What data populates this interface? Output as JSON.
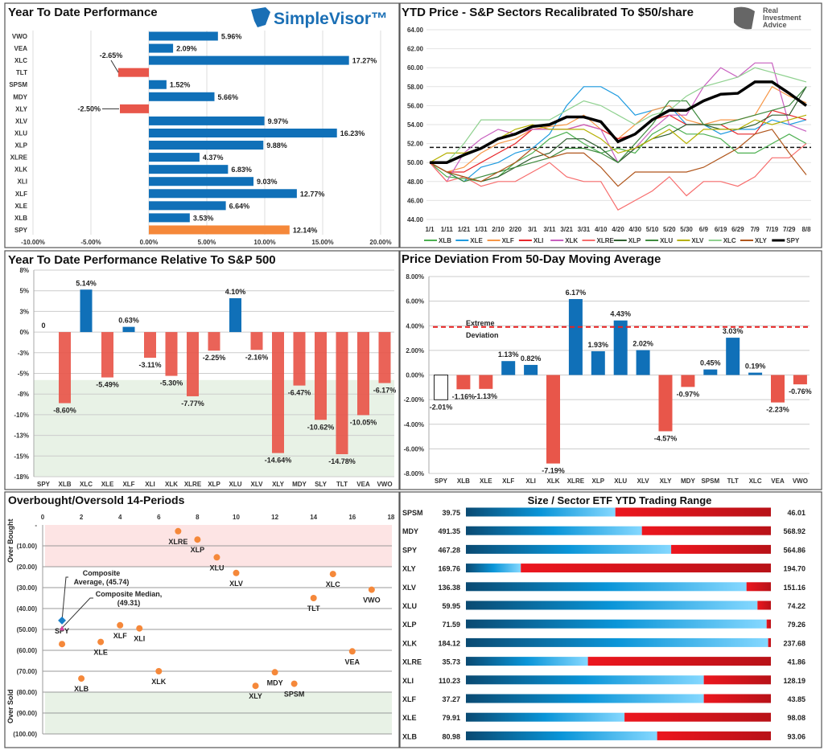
{
  "chart_data": [
    {
      "type": "bar",
      "orientation": "horizontal",
      "title": "Year To Date Performance",
      "logo": "SimpleVisor™",
      "categories": [
        "VWO",
        "VEA",
        "XLC",
        "TLT",
        "SPSM",
        "MDY",
        "XLY",
        "XLV",
        "XLU",
        "XLP",
        "XLRE",
        "XLK",
        "XLI",
        "XLF",
        "XLE",
        "XLB",
        "SPY"
      ],
      "values": [
        5.96,
        2.09,
        17.27,
        -2.65,
        1.52,
        5.66,
        -2.5,
        9.97,
        16.23,
        9.88,
        4.37,
        6.83,
        9.03,
        12.77,
        6.64,
        3.53,
        12.14
      ],
      "labels": [
        "5.96%",
        "2.09%",
        "17.27%",
        "-2.65%",
        "1.52%",
        "5.66%",
        "-2.50%",
        "9.97%",
        "16.23%",
        "9.88%",
        "4.37%",
        "6.83%",
        "9.03%",
        "12.77%",
        "6.64%",
        "3.53%",
        "12.14%"
      ],
      "xlim": [
        -10,
        20
      ],
      "x_ticks": [
        -10,
        -5,
        0,
        5,
        10,
        15,
        20
      ],
      "x_tick_labels": [
        "-10.00%",
        "-5.00%",
        "0.00%",
        "5.00%",
        "10.00%",
        "15.00%",
        "20.00%"
      ],
      "colors": {
        "positive": "#1070b8",
        "negative": "#e8564a",
        "benchmark": "#f5883a"
      },
      "grid": true
    },
    {
      "type": "line",
      "title": "YTD Price - S&P Sectors Recalibrated To $50/share",
      "logo": "Real Investment Advice",
      "x": [
        "1/1",
        "1/11",
        "1/21",
        "1/31",
        "2/10",
        "2/20",
        "3/1",
        "3/11",
        "3/21",
        "3/31",
        "4/10",
        "4/20",
        "4/30",
        "5/10",
        "5/20",
        "5/30",
        "6/9",
        "6/19",
        "6/29",
        "7/9",
        "7/19",
        "7/29",
        "8/8"
      ],
      "ylim": [
        44,
        64
      ],
      "y_ticks": [
        44,
        46,
        48,
        50,
        52,
        54,
        56,
        58,
        60,
        62,
        64
      ],
      "y_tick_labels": [
        "44.00",
        "46.00",
        "48.00",
        "50.00",
        "52.00",
        "54.00",
        "56.00",
        "58.00",
        "60.00",
        "62.00",
        "64.00"
      ],
      "reference_line": 51.6,
      "legend": "bottom",
      "grid": true,
      "series": [
        {
          "name": "XLB",
          "color": "#4cb050",
          "values": [
            50,
            48.5,
            48.3,
            48,
            48.5,
            50,
            51,
            52.5,
            53.2,
            52,
            51,
            51.5,
            51,
            53,
            54,
            53,
            53,
            52.5,
            51,
            51,
            52,
            53,
            52
          ]
        },
        {
          "name": "XLE",
          "color": "#1e9be0",
          "values": [
            50,
            49,
            48,
            49.5,
            50,
            51,
            51.5,
            53,
            56,
            58,
            58,
            57,
            55,
            55.5,
            56,
            54,
            54,
            53,
            53.5,
            53.5,
            54.5,
            54,
            54.5
          ]
        },
        {
          "name": "XLF",
          "color": "#f79646",
          "values": [
            50,
            49,
            49.5,
            51,
            52,
            52.5,
            53.5,
            53.8,
            54,
            55,
            53.5,
            52.5,
            54,
            55.5,
            56,
            54.5,
            54,
            54.5,
            54.5,
            55,
            58,
            57,
            56.3
          ]
        },
        {
          "name": "XLI",
          "color": "#e8262a",
          "values": [
            50,
            49,
            49,
            50,
            51,
            52,
            53.5,
            53.5,
            53.5,
            54,
            53.5,
            52.5,
            53,
            54.5,
            55,
            54,
            54,
            54,
            53,
            53,
            55.5,
            55,
            54.5
          ]
        },
        {
          "name": "XLK",
          "color": "#c85fbf",
          "values": [
            50,
            48,
            51,
            52.5,
            53.5,
            53,
            53.5,
            53.5,
            53.5,
            54,
            53.5,
            50,
            51.5,
            53.5,
            55,
            55,
            58,
            60,
            59,
            60.5,
            60.5,
            54,
            53.3
          ]
        },
        {
          "name": "XLRE",
          "color": "#f76d6d",
          "values": [
            50,
            48,
            48.5,
            47.5,
            48,
            48,
            49,
            50,
            48.5,
            48,
            48,
            45,
            46,
            47,
            48.5,
            46.5,
            48,
            48,
            47.5,
            48.5,
            50.5,
            50.5,
            52
          ]
        },
        {
          "name": "XLP",
          "color": "#2e5e2e",
          "values": [
            50,
            49,
            48.5,
            48,
            48.5,
            49.5,
            50.5,
            51,
            52.5,
            52.5,
            51.5,
            50,
            51.5,
            52.5,
            53,
            54,
            54,
            53.5,
            53.5,
            54,
            55,
            55,
            58
          ]
        },
        {
          "name": "XLU",
          "color": "#3d8a3d",
          "values": [
            50,
            49,
            48,
            48.5,
            49,
            49.5,
            50,
            50.5,
            51.5,
            51.5,
            51,
            50,
            52,
            54,
            56.5,
            56.5,
            54,
            54,
            54.5,
            55,
            55.5,
            56,
            58
          ]
        },
        {
          "name": "XLV",
          "color": "#b5b000",
          "values": [
            50,
            51,
            51,
            51.5,
            52.5,
            53.5,
            54,
            53.5,
            53.5,
            53.5,
            52.5,
            51,
            51.5,
            52.5,
            53.5,
            52,
            53.5,
            53.5,
            53.5,
            54.5,
            54,
            54.5,
            55
          ]
        },
        {
          "name": "XLC",
          "color": "#8fd18f",
          "values": [
            50,
            50,
            52,
            54.5,
            54.5,
            54.5,
            54.5,
            54.5,
            55.5,
            56.5,
            56,
            55,
            54,
            55,
            55.5,
            57,
            58,
            58.5,
            59,
            60,
            59.5,
            59,
            58.5
          ]
        },
        {
          "name": "XLY",
          "color": "#b0561c",
          "values": [
            50,
            49,
            48.5,
            48,
            49,
            50,
            51.5,
            50.5,
            51,
            51,
            49.5,
            47.5,
            49,
            49,
            49,
            49,
            49.5,
            50.5,
            51.5,
            53,
            53.5,
            51,
            48.7
          ]
        },
        {
          "name": "SPY",
          "color": "#000000",
          "values": [
            50,
            50,
            50.8,
            51.5,
            52.5,
            53,
            53.8,
            54,
            54.8,
            54.8,
            54.3,
            52.2,
            53,
            54.5,
            55.5,
            55.5,
            56.5,
            57.2,
            57.3,
            58.5,
            58.5,
            57.3,
            56
          ]
        }
      ]
    },
    {
      "type": "bar",
      "title": "Year To Date Performance Relative To S&P 500",
      "categories": [
        "SPY",
        "XLB",
        "XLC",
        "XLE",
        "XLF",
        "XLI",
        "XLK",
        "XLRE",
        "XLP",
        "XLU",
        "XLV",
        "XLY",
        "MDY",
        "SLY",
        "TLT",
        "VEA",
        "VWO"
      ],
      "values": [
        0,
        -8.6,
        5.14,
        -5.49,
        0.63,
        -3.11,
        -5.3,
        -7.77,
        -2.25,
        4.1,
        -2.16,
        -14.64,
        -6.47,
        -10.62,
        -14.78,
        -10.05,
        -6.17
      ],
      "labels": [
        "0",
        "-8.60%",
        "5.14%",
        "-5.49%",
        "0.63%",
        "-3.11%",
        "-5.30%",
        "-7.77%",
        "-2.25%",
        "4.10%",
        "-2.16%",
        "-14.64%",
        "-6.47%",
        "-10.62%",
        "-14.78%",
        "-10.05%",
        "-6.17%"
      ],
      "ylim": [
        -17.5,
        7.5
      ],
      "y_ticks": [
        7.5,
        5,
        2.5,
        0,
        -2.5,
        -5,
        -7.5,
        -10,
        -12.5,
        -15,
        -17.5
      ],
      "y_tick_labels": [
        "8%",
        "5%",
        "3%",
        "0%",
        "-3%",
        "-5%",
        "-8%",
        "-10%",
        "-13%",
        "-15%",
        "-18%"
      ],
      "colors": {
        "positive": "#1070b8",
        "negative": "#e8564a",
        "zone": "#e8f2e6"
      },
      "grid": true
    },
    {
      "type": "bar",
      "title": "Price Deviation From 50-Day Moving Average",
      "categories": [
        "SPY",
        "XLB",
        "XLE",
        "XLF",
        "XLI",
        "XLK",
        "XLRE",
        "XLP",
        "XLU",
        "XLV",
        "XLY",
        "MDY",
        "SPSM",
        "TLT",
        "XLC",
        "VEA",
        "VWO"
      ],
      "values": [
        -2.01,
        -1.16,
        -1.13,
        1.13,
        0.82,
        -7.19,
        6.17,
        1.93,
        4.43,
        2.02,
        -4.57,
        -0.97,
        0.45,
        3.03,
        0.19,
        -2.23,
        -0.76
      ],
      "labels": [
        "-2.01%",
        "-1.16%",
        "-1.13%",
        "1.13%",
        "0.82%",
        "-7.19%",
        "6.17%",
        "1.93%",
        "4.43%",
        "2.02%",
        "-4.57%",
        "-0.97%",
        "0.45%",
        "3.03%",
        "0.19%",
        "-2.23%",
        "-0.76%"
      ],
      "ylim": [
        -8,
        8
      ],
      "y_ticks": [
        8,
        6,
        4,
        2,
        0,
        -2,
        -4,
        -6,
        -8
      ],
      "y_tick_labels": [
        "8.00%",
        "6.00%",
        "4.00%",
        "2.00%",
        "0.00%",
        "-2.00%",
        "-4.00%",
        "-6.00%",
        "-8.00%"
      ],
      "threshold": {
        "value": 3.9,
        "label_line1": "Extreme",
        "label_line2": "Deviation",
        "color": "#e82020"
      },
      "colors": {
        "positive": "#1070b8",
        "negative": "#e8564a",
        "benchmark": "#ffffff"
      },
      "grid": true
    },
    {
      "type": "scatter",
      "title": "Overbought/Oversold 14-Periods",
      "xlim": [
        0,
        18
      ],
      "x_ticks": [
        0,
        2,
        4,
        6,
        8,
        10,
        12,
        14,
        16,
        18
      ],
      "x_tick_labels": [
        "0",
        "2",
        "4",
        "6",
        "8",
        "10",
        "12",
        "14",
        "16",
        "18"
      ],
      "ylim": [
        0,
        100
      ],
      "y_ticks": [
        0,
        10,
        20,
        30,
        40,
        50,
        60,
        70,
        80,
        90,
        100
      ],
      "y_tick_labels": [
        "-",
        "(10.00)",
        "(20.00)",
        "(30.00)",
        "(40.00)",
        "(50.00)",
        "(60.00)",
        "(70.00)",
        "(80.00)",
        "(90.00)",
        "(100.00)"
      ],
      "y_inverted": true,
      "zones": {
        "overbought_label": "Over Bought",
        "overbought_range": [
          0,
          20
        ],
        "overbought_color": "#fde4e4",
        "oversold_label": "Over Sold",
        "oversold_range": [
          80,
          100
        ],
        "oversold_color": "#e8f2e6"
      },
      "points": [
        {
          "label": "XLRE",
          "x": 7,
          "y": 3
        },
        {
          "label": "XLP",
          "x": 8,
          "y": 7
        },
        {
          "label": "XLU",
          "x": 9,
          "y": 15.5
        },
        {
          "label": "XLV",
          "x": 10,
          "y": 23
        },
        {
          "label": "XLC",
          "x": 15,
          "y": 23.5
        },
        {
          "label": "VWO",
          "x": 17,
          "y": 31
        },
        {
          "label": "TLT",
          "x": 14,
          "y": 35
        },
        {
          "label": "XLF",
          "x": 4,
          "y": 48
        },
        {
          "label": "XLI",
          "x": 5,
          "y": 49.5
        },
        {
          "label": "SPY",
          "x": 1,
          "y": 57
        },
        {
          "label": "XLE",
          "x": 3,
          "y": 56
        },
        {
          "label": "VEA",
          "x": 16,
          "y": 60.5
        },
        {
          "label": "XLK",
          "x": 6,
          "y": 70
        },
        {
          "label": "MDY",
          "x": 12,
          "y": 70.5
        },
        {
          "label": "XLB",
          "x": 2,
          "y": 73.5
        },
        {
          "label": "SPSM",
          "x": 13,
          "y": 76
        },
        {
          "label": "XLY",
          "x": 11,
          "y": 77
        }
      ],
      "point_color": "#f5883a",
      "composite_average": {
        "x": 1,
        "y": 45.74,
        "label_line1": "Composite",
        "label_line2": "Average,  (45.74)",
        "color": "#1a7fc8"
      },
      "composite_median": {
        "x": 1,
        "y": 49.31,
        "label_line1": "Composite Median,",
        "label_line2": "(49.31)",
        "color": "#d940a0"
      }
    },
    {
      "type": "range_bar",
      "title": "Size / Sector ETF YTD Trading Range",
      "rows": [
        {
          "ticker": "SPSM",
          "low": "39.75",
          "high": "46.01",
          "position": 0.49
        },
        {
          "ticker": "MDY",
          "low": "491.35",
          "high": "568.92",
          "position": 0.577
        },
        {
          "ticker": "SPY",
          "low": "467.28",
          "high": "564.86",
          "position": 0.673
        },
        {
          "ticker": "XLY",
          "low": "169.76",
          "high": "194.70",
          "position": 0.18
        },
        {
          "ticker": "XLV",
          "low": "136.38",
          "high": "151.16",
          "position": 0.92
        },
        {
          "ticker": "XLU",
          "low": "59.95",
          "high": "74.22",
          "position": 0.956
        },
        {
          "ticker": "XLP",
          "low": "71.59",
          "high": "79.26",
          "position": 0.986
        },
        {
          "ticker": "XLK",
          "low": "184.12",
          "high": "237.68",
          "position": 0.991
        },
        {
          "ticker": "XLRE",
          "low": "35.73",
          "high": "41.86",
          "position": 0.4
        },
        {
          "ticker": "XLI",
          "low": "110.23",
          "high": "128.19",
          "position": 0.78
        },
        {
          "ticker": "XLF",
          "low": "37.27",
          "high": "43.85",
          "position": 0.78
        },
        {
          "ticker": "XLE",
          "low": "79.91",
          "high": "98.08",
          "position": 0.52
        },
        {
          "ticker": "XLB",
          "low": "80.98",
          "high": "93.06",
          "position": 0.627
        }
      ]
    }
  ]
}
